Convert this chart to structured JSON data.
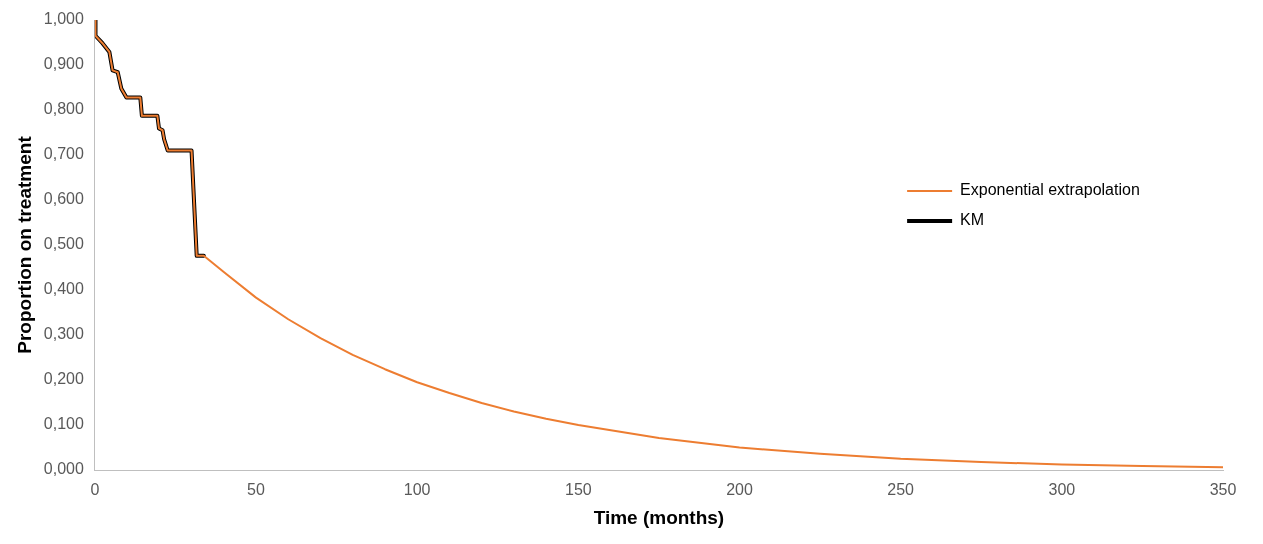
{
  "chart_data": {
    "type": "line",
    "xlabel": "Time (months)",
    "ylabel": "Proportion on treatment",
    "legend": "right",
    "grid": false,
    "marker": "none",
    "xlim": [
      0,
      350
    ],
    "xticks": [
      0,
      50,
      100,
      150,
      200,
      250,
      300,
      350
    ],
    "ylim": [
      0,
      1
    ],
    "yticks": [
      {
        "value": 0,
        "label": "0,000"
      },
      {
        "value": 0.1,
        "label": "0,100"
      },
      {
        "value": 0.2,
        "label": "0,200"
      },
      {
        "value": 0.3,
        "label": "0,300"
      },
      {
        "value": 0.4,
        "label": "0,400"
      },
      {
        "value": 0.5,
        "label": "0,500"
      },
      {
        "value": 0.6,
        "label": "0,600"
      },
      {
        "value": 0.7,
        "label": "0,700"
      },
      {
        "value": 0.8,
        "label": "0,800"
      },
      {
        "value": 0.9,
        "label": "0,900"
      },
      {
        "value": 1,
        "label": "1,000"
      }
    ],
    "series": [
      {
        "name": "Exponential extrapolation",
        "color": "#ed7d31",
        "x": [
          0.2,
          0.2,
          2.3,
          4.5,
          5.5,
          7.1,
          8.2,
          9.8,
          14.1,
          14.6,
          19.4,
          19.9,
          21,
          21.5,
          22.6,
          30,
          31.6,
          33.8,
          40,
          50,
          60,
          70,
          80,
          90,
          100,
          110,
          120,
          130,
          140,
          150,
          175,
          200,
          225,
          250,
          275,
          300,
          325,
          350
        ],
        "values": [
          1,
          0.965,
          0.949,
          0.929,
          0.888,
          0.884,
          0.848,
          0.828,
          0.828,
          0.787,
          0.787,
          0.759,
          0.755,
          0.735,
          0.71,
          0.71,
          0.476,
          0.476,
          0.44,
          0.383,
          0.335,
          0.293,
          0.256,
          0.224,
          0.195,
          0.171,
          0.149,
          0.13,
          0.114,
          0.1,
          0.071,
          0.05,
          0.036,
          0.025,
          0.018,
          0.012,
          0.009,
          0.006
        ]
      },
      {
        "name": "KM",
        "color": "#000000",
        "x": [
          0.2,
          0.2,
          2.3,
          4.5,
          5.5,
          7.1,
          8.2,
          9.8,
          14.1,
          14.6,
          19.4,
          19.9,
          21,
          21.5,
          22.6,
          30,
          31.6,
          33.8
        ],
        "values": [
          1,
          0.965,
          0.949,
          0.929,
          0.888,
          0.884,
          0.848,
          0.828,
          0.828,
          0.787,
          0.787,
          0.759,
          0.755,
          0.735,
          0.71,
          0.71,
          0.476,
          0.476
        ]
      }
    ]
  }
}
